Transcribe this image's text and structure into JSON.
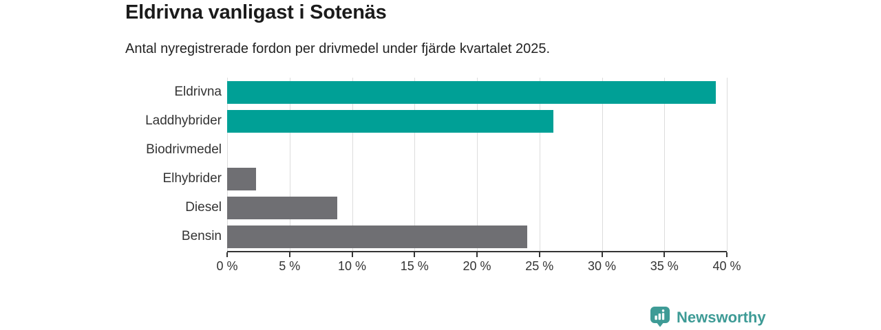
{
  "header": {
    "title": "Eldrivna vanligast i Sotenäs",
    "subtitle": "Antal nyregistrerade fordon per drivmedel under fjärde kvartalet 2025."
  },
  "chart_data": {
    "type": "bar",
    "orientation": "horizontal",
    "title": "Eldrivna vanligast i Sotenäs",
    "subtitle": "Antal nyregistrerade fordon per drivmedel under fjärde kvartalet 2025.",
    "categories": [
      "Eldrivna",
      "Laddhybrider",
      "Biodrivmedel",
      "Elhybrider",
      "Diesel",
      "Bensin"
    ],
    "values": [
      39.1,
      26.1,
      0,
      2.3,
      8.8,
      24
    ],
    "unit": "%",
    "bar_colors": [
      "#00a096",
      "#00a096",
      "#6f6f73",
      "#6f6f73",
      "#6f6f73",
      "#6f6f73"
    ],
    "xlim": [
      0,
      40
    ],
    "x_tick_values": [
      0,
      5,
      10,
      15,
      20,
      25,
      30,
      35,
      40
    ],
    "x_tick_labels": [
      "0 %",
      "5 %",
      "10 %",
      "15 %",
      "20 %",
      "25 %",
      "30 %",
      "35 %",
      "40 %"
    ],
    "grid": true,
    "legend": false
  },
  "footer": {
    "brand": "Newsworthy",
    "brand_color": "#3e9b96"
  },
  "colors": {
    "highlight": "#00a096",
    "muted": "#6f6f73",
    "axis": "#333333",
    "gridline": "#dcdcdc",
    "background": "#ffffff"
  }
}
